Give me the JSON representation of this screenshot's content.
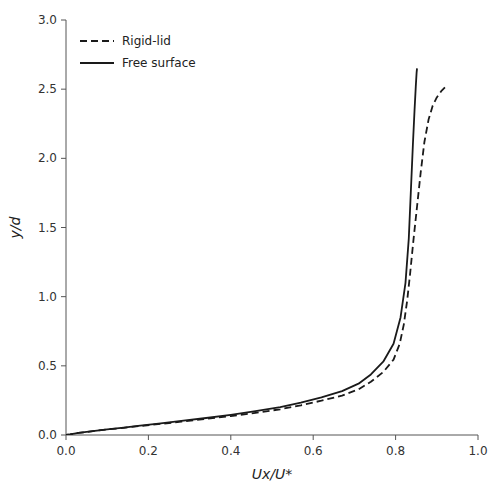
{
  "chart_data": {
    "type": "line",
    "xlabel": "Ux/U*",
    "ylabel": "y/d",
    "xlim": [
      0,
      1.0
    ],
    "ylim": [
      0,
      3.0
    ],
    "xticks": [
      {
        "value": 0,
        "label": "0.0"
      },
      0.2,
      0.4,
      0.6,
      0.8,
      {
        "value": 1.0,
        "label": "1.0"
      }
    ],
    "yticks": [
      {
        "value": 0,
        "label": "0.0"
      },
      0.5,
      {
        "value": 1.0,
        "label": "1.0"
      },
      1.5,
      {
        "value": 2.0,
        "label": "2.0"
      },
      2.5,
      {
        "value": 3.0,
        "label": "3.0"
      }
    ],
    "legend": "upper left",
    "grid": false,
    "series": [
      {
        "name": "Rigid-lid",
        "color": "#1a1a1a",
        "line_style": "dashed",
        "x": [
          0.0,
          0.005,
          0.01,
          0.02,
          0.03,
          0.05,
          0.07,
          0.1,
          0.14,
          0.18,
          0.23,
          0.28,
          0.34,
          0.4,
          0.46,
          0.52,
          0.57,
          0.62,
          0.67,
          0.71,
          0.74,
          0.77,
          0.795,
          0.81,
          0.82,
          0.828,
          0.835,
          0.843,
          0.852,
          0.861,
          0.87,
          0.88,
          0.89,
          0.9,
          0.912,
          0.922
        ],
        "values": [
          0.0,
          0.003,
          0.005,
          0.01,
          0.015,
          0.022,
          0.03,
          0.04,
          0.052,
          0.065,
          0.08,
          0.097,
          0.116,
          0.137,
          0.16,
          0.186,
          0.215,
          0.248,
          0.285,
          0.33,
          0.385,
          0.455,
          0.545,
          0.66,
          0.8,
          0.97,
          1.16,
          1.4,
          1.65,
          1.9,
          2.12,
          2.28,
          2.38,
          2.44,
          2.49,
          2.52
        ]
      },
      {
        "name": "Free surface",
        "color": "#1a1a1a",
        "line_style": "solid",
        "x": [
          0.0,
          0.005,
          0.01,
          0.02,
          0.03,
          0.05,
          0.07,
          0.1,
          0.14,
          0.18,
          0.23,
          0.28,
          0.34,
          0.4,
          0.46,
          0.52,
          0.57,
          0.62,
          0.67,
          0.71,
          0.74,
          0.77,
          0.795,
          0.812,
          0.824,
          0.832,
          0.837,
          0.842,
          0.846,
          0.849,
          0.851,
          0.852
        ],
        "values": [
          0.0,
          0.003,
          0.005,
          0.01,
          0.015,
          0.022,
          0.03,
          0.041,
          0.054,
          0.068,
          0.084,
          0.102,
          0.123,
          0.146,
          0.172,
          0.201,
          0.234,
          0.272,
          0.317,
          0.371,
          0.438,
          0.53,
          0.66,
          0.85,
          1.1,
          1.42,
          1.76,
          2.1,
          2.35,
          2.52,
          2.62,
          2.65
        ]
      }
    ]
  }
}
